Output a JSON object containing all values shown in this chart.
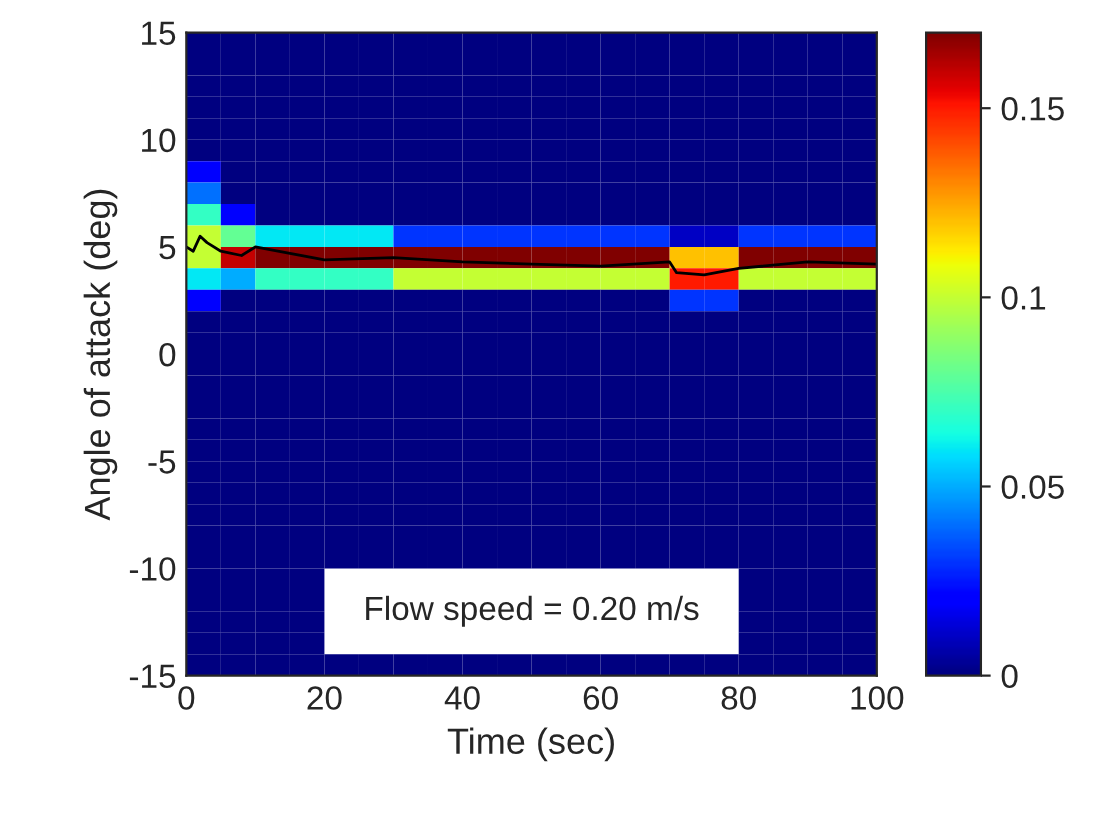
{
  "chart_data": [
    {
      "type": "heatmap",
      "xlabel": "Time (sec)",
      "ylabel": "Angle of attack (deg)",
      "xlim": [
        0,
        100
      ],
      "xticks": [
        0,
        20,
        40,
        60,
        80,
        100
      ],
      "ylim": [
        -15,
        15
      ],
      "yticks": [
        -15,
        -10,
        -5,
        0,
        5,
        10,
        15
      ],
      "clim": [
        0,
        0.17
      ],
      "cticks": [
        0,
        0.05,
        0.1,
        0.15
      ],
      "cells": [
        [
          0,
          0,
          0,
          0,
          0,
          0,
          0,
          0,
          0,
          0,
          0,
          0,
          0,
          0,
          0,
          0,
          0,
          0,
          0,
          0
        ],
        [
          0,
          0,
          0,
          0,
          0,
          0,
          0,
          0,
          0,
          0,
          0,
          0,
          0,
          0,
          0,
          0,
          0,
          0,
          0,
          0
        ],
        [
          0,
          0,
          0,
          0,
          0,
          0,
          0,
          0,
          0,
          0,
          0,
          0,
          0,
          0,
          0,
          0,
          0,
          0,
          0,
          0
        ],
        [
          0,
          0,
          0,
          0,
          0,
          0,
          0,
          0,
          0,
          0,
          0,
          0,
          0,
          0,
          0,
          0,
          0,
          0,
          0,
          0
        ],
        [
          0,
          0,
          0,
          0,
          0,
          0,
          0,
          0,
          0,
          0,
          0,
          0,
          0,
          0,
          0,
          0,
          0,
          0,
          0,
          0
        ],
        [
          0,
          0,
          0,
          0,
          0,
          0,
          0,
          0,
          0,
          0,
          0,
          0,
          0,
          0,
          0,
          0,
          0,
          0,
          0,
          0
        ],
        [
          0.02,
          0,
          0,
          0,
          0,
          0,
          0,
          0,
          0,
          0,
          0,
          0,
          0,
          0,
          0,
          0,
          0,
          0,
          0,
          0
        ],
        [
          0.04,
          0,
          0,
          0,
          0,
          0,
          0,
          0,
          0,
          0,
          0,
          0,
          0,
          0,
          0,
          0,
          0,
          0,
          0,
          0
        ],
        [
          0.07,
          0.02,
          0,
          0,
          0,
          0,
          0,
          0,
          0,
          0,
          0,
          0,
          0,
          0,
          0,
          0,
          0,
          0,
          0,
          0
        ],
        [
          0.1,
          0.08,
          0.06,
          0.06,
          0.06,
          0.06,
          0.03,
          0.03,
          0.03,
          0.03,
          0.03,
          0.03,
          0.03,
          0.03,
          0.01,
          0.01,
          0.03,
          0.03,
          0.03,
          0.03
        ],
        [
          0.1,
          0.16,
          0.17,
          0.17,
          0.17,
          0.17,
          0.17,
          0.17,
          0.17,
          0.17,
          0.17,
          0.17,
          0.17,
          0.17,
          0.12,
          0.12,
          0.17,
          0.17,
          0.17,
          0.17
        ],
        [
          0.06,
          0.05,
          0.07,
          0.07,
          0.07,
          0.07,
          0.1,
          0.1,
          0.1,
          0.1,
          0.1,
          0.1,
          0.1,
          0.1,
          0.15,
          0.15,
          0.1,
          0.1,
          0.1,
          0.1
        ],
        [
          0.02,
          0,
          0,
          0,
          0,
          0,
          0,
          0,
          0,
          0,
          0,
          0,
          0,
          0,
          0.03,
          0.03,
          0,
          0,
          0,
          0
        ],
        [
          0,
          0,
          0,
          0,
          0,
          0,
          0,
          0,
          0,
          0,
          0,
          0,
          0,
          0,
          0,
          0,
          0,
          0,
          0,
          0
        ],
        [
          0,
          0,
          0,
          0,
          0,
          0,
          0,
          0,
          0,
          0,
          0,
          0,
          0,
          0,
          0,
          0,
          0,
          0,
          0,
          0
        ],
        [
          0,
          0,
          0,
          0,
          0,
          0,
          0,
          0,
          0,
          0,
          0,
          0,
          0,
          0,
          0,
          0,
          0,
          0,
          0,
          0
        ],
        [
          0,
          0,
          0,
          0,
          0,
          0,
          0,
          0,
          0,
          0,
          0,
          0,
          0,
          0,
          0,
          0,
          0,
          0,
          0,
          0
        ],
        [
          0,
          0,
          0,
          0,
          0,
          0,
          0,
          0,
          0,
          0,
          0,
          0,
          0,
          0,
          0,
          0,
          0,
          0,
          0,
          0
        ],
        [
          0,
          0,
          0,
          0,
          0,
          0,
          0,
          0,
          0,
          0,
          0,
          0,
          0,
          0,
          0,
          0,
          0,
          0,
          0,
          0
        ],
        [
          0,
          0,
          0,
          0,
          0,
          0,
          0,
          0,
          0,
          0,
          0,
          0,
          0,
          0,
          0,
          0,
          0,
          0,
          0,
          0
        ],
        [
          0,
          0,
          0,
          0,
          0,
          0,
          0,
          0,
          0,
          0,
          0,
          0,
          0,
          0,
          0,
          0,
          0,
          0,
          0,
          0
        ],
        [
          0,
          0,
          0,
          0,
          0,
          0,
          0,
          0,
          0,
          0,
          0,
          0,
          0,
          0,
          0,
          0,
          0,
          0,
          0,
          0
        ],
        [
          0,
          0,
          0,
          0,
          0,
          0,
          0,
          0,
          0,
          0,
          0,
          0,
          0,
          0,
          0,
          0,
          0,
          0,
          0,
          0
        ],
        [
          0,
          0,
          0,
          0,
          0,
          0,
          0,
          0,
          0,
          0,
          0,
          0,
          0,
          0,
          0,
          0,
          0,
          0,
          0,
          0
        ],
        [
          0,
          0,
          0,
          0,
          0,
          0,
          0,
          0,
          0,
          0,
          0,
          0,
          0,
          0,
          0,
          0,
          0,
          0,
          0,
          0
        ],
        [
          0,
          0,
          0,
          0,
          null,
          null,
          null,
          null,
          null,
          null,
          null,
          null,
          null,
          null,
          null,
          null,
          0,
          0,
          0,
          0
        ],
        [
          0,
          0,
          0,
          0,
          null,
          null,
          null,
          null,
          null,
          null,
          null,
          null,
          null,
          null,
          null,
          null,
          0,
          0,
          0,
          0
        ],
        [
          0,
          0,
          0,
          0,
          null,
          null,
          null,
          null,
          null,
          null,
          null,
          null,
          null,
          null,
          null,
          null,
          0,
          0,
          0,
          0
        ],
        [
          0,
          0,
          0,
          0,
          null,
          null,
          null,
          null,
          null,
          null,
          null,
          null,
          null,
          null,
          null,
          null,
          0,
          0,
          0,
          0
        ],
        [
          0,
          0,
          0,
          0,
          0,
          0,
          0,
          0,
          0,
          0,
          0,
          0,
          0,
          0,
          0,
          0,
          0,
          0,
          0,
          0
        ]
      ],
      "series": [
        {
          "type": "line",
          "color": "#000000",
          "x": [
            0,
            1,
            2,
            3,
            5,
            8,
            10,
            15,
            20,
            30,
            40,
            50,
            60,
            70,
            71,
            75,
            80,
            90,
            100
          ],
          "values": [
            5,
            4.8,
            5.5,
            5.2,
            4.8,
            4.6,
            5.0,
            4.7,
            4.4,
            4.5,
            4.3,
            4.2,
            4.1,
            4.3,
            3.8,
            3.7,
            4.0,
            4.3,
            4.2
          ]
        }
      ],
      "annotations": [
        "Flow speed = 0.20 m/s"
      ]
    }
  ]
}
